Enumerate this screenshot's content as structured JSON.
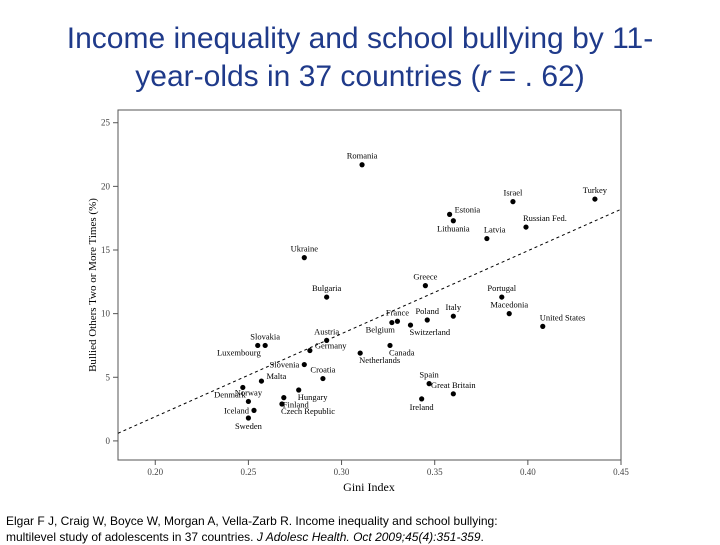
{
  "page": {
    "title_line1": "Income inequality and school bullying by 11-",
    "title_line2_pre": "year-olds in 37 countries (",
    "title_r": "r",
    "title_line2_post": " = . 62)",
    "citation_line1": "Elgar F J, Craig W, Boyce W, Morgan A, Vella-Zarb R. Income inequality and school bullying:",
    "citation_line2_pre": "multilevel study of adolescents in 37 countries. ",
    "citation_journal": "J Adolesc Health. Oct 2009;45(4):351-359",
    "citation_end": "."
  },
  "chart_data": {
    "type": "scatter",
    "xlabel": "Gini Index",
    "ylabel": "Bullied Others Two or More Times (%)",
    "xlim": [
      0.18,
      0.45
    ],
    "ylim": [
      -1.5,
      26
    ],
    "xticks": [
      0.2,
      0.25,
      0.3,
      0.35,
      0.4,
      0.45
    ],
    "xtick_labels": [
      "0.20",
      "0.25",
      "0.30",
      "0.35",
      "0.40",
      "0.45"
    ],
    "yticks": [
      0,
      5,
      10,
      15,
      20,
      25
    ],
    "ytick_labels": [
      "0",
      "5",
      "10",
      "15",
      "20",
      "25"
    ],
    "trendline": {
      "x": [
        0.18,
        0.45
      ],
      "y": [
        0.6,
        18.2
      ]
    },
    "points": [
      {
        "label": "Romania",
        "x": 0.311,
        "y": 21.7,
        "lp": "above"
      },
      {
        "label": "Turkey",
        "x": 0.436,
        "y": 19.0,
        "lp": "above"
      },
      {
        "label": "Israel",
        "x": 0.392,
        "y": 18.8,
        "lp": "above"
      },
      {
        "label": "Estonia",
        "x": 0.358,
        "y": 17.8,
        "lp": "right"
      },
      {
        "label": "Russian Fed.",
        "x": 0.399,
        "y": 16.8,
        "lp": "aboveright"
      },
      {
        "label": "Lithuania",
        "x": 0.36,
        "y": 17.3,
        "lp": "below"
      },
      {
        "label": "Latvia",
        "x": 0.378,
        "y": 15.9,
        "lp": "aboveright"
      },
      {
        "label": "Ukraine",
        "x": 0.28,
        "y": 14.4,
        "lp": "above"
      },
      {
        "label": "Greece",
        "x": 0.345,
        "y": 12.2,
        "lp": "above"
      },
      {
        "label": "Bulgaria",
        "x": 0.292,
        "y": 11.3,
        "lp": "above"
      },
      {
        "label": "Portugal",
        "x": 0.386,
        "y": 11.3,
        "lp": "above"
      },
      {
        "label": "Macedonia",
        "x": 0.39,
        "y": 10.0,
        "lp": "above"
      },
      {
        "label": "Italy",
        "x": 0.36,
        "y": 9.8,
        "lp": "above"
      },
      {
        "label": "Poland",
        "x": 0.346,
        "y": 9.5,
        "lp": "above"
      },
      {
        "label": "United States",
        "x": 0.408,
        "y": 9.0,
        "lp": "aboveright"
      },
      {
        "label": "France",
        "x": 0.33,
        "y": 9.4,
        "lp": "above"
      },
      {
        "label": "Belgium",
        "x": 0.327,
        "y": 9.3,
        "lp": "belowleft"
      },
      {
        "label": "Switzerland",
        "x": 0.337,
        "y": 9.1,
        "lp": "belowright"
      },
      {
        "label": "Austria",
        "x": 0.292,
        "y": 7.9,
        "lp": "above"
      },
      {
        "label": "Slovakia",
        "x": 0.259,
        "y": 7.5,
        "lp": "above"
      },
      {
        "label": "Luxembourg",
        "x": 0.255,
        "y": 7.5,
        "lp": "belowleft"
      },
      {
        "label": "Canada",
        "x": 0.326,
        "y": 7.5,
        "lp": "belowright"
      },
      {
        "label": "Germany",
        "x": 0.283,
        "y": 7.1,
        "lp": "right"
      },
      {
        "label": "Netherlands",
        "x": 0.31,
        "y": 6.9,
        "lp": "belowright"
      },
      {
        "label": "Slovenia",
        "x": 0.28,
        "y": 6.0,
        "lp": "left"
      },
      {
        "label": "Croatia",
        "x": 0.29,
        "y": 4.9,
        "lp": "above"
      },
      {
        "label": "Spain",
        "x": 0.347,
        "y": 4.5,
        "lp": "above"
      },
      {
        "label": "Malta",
        "x": 0.257,
        "y": 4.7,
        "lp": "right"
      },
      {
        "label": "Great Britain",
        "x": 0.36,
        "y": 3.7,
        "lp": "above"
      },
      {
        "label": "Denmark",
        "x": 0.247,
        "y": 4.2,
        "lp": "belowleft"
      },
      {
        "label": "Norway",
        "x": 0.25,
        "y": 3.1,
        "lp": "above"
      },
      {
        "label": "Hungary",
        "x": 0.277,
        "y": 4.0,
        "lp": "belowright"
      },
      {
        "label": "Ireland",
        "x": 0.343,
        "y": 3.3,
        "lp": "below"
      },
      {
        "label": "Finland",
        "x": 0.269,
        "y": 3.4,
        "lp": "belowright"
      },
      {
        "label": "Iceland",
        "x": 0.253,
        "y": 2.4,
        "lp": "left"
      },
      {
        "label": "Czech Republic",
        "x": 0.268,
        "y": 2.9,
        "lp": "belowright"
      },
      {
        "label": "Sweden",
        "x": 0.25,
        "y": 1.8,
        "lp": "below"
      }
    ]
  }
}
